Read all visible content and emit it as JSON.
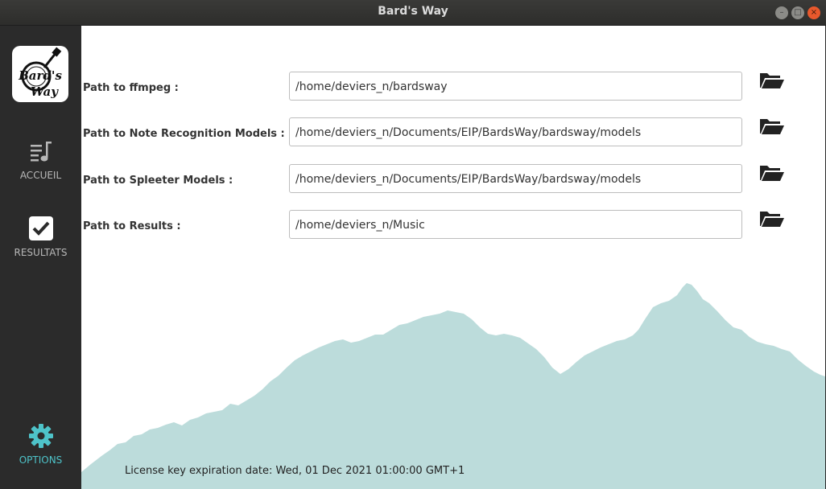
{
  "window": {
    "title": "Bard's Way"
  },
  "sidebar": {
    "logo_text_top": "Bard's",
    "logo_text_bottom": "Way",
    "items": [
      {
        "label": "ACCUEIL",
        "icon": "music-list-icon"
      },
      {
        "label": "RESULTATS",
        "icon": "checkbox-icon"
      },
      {
        "label": "OPTIONS",
        "icon": "gear-icon",
        "active": true
      }
    ],
    "active_color": "#4ec3c9"
  },
  "settings": {
    "ffmpeg": {
      "label": "Path to ffmpeg :",
      "value": "/home/deviers_n/bardsway"
    },
    "note_models": {
      "label": "Path to Note Recognition Models :",
      "value": "/home/deviers_n/Documents/EIP/BardsWay/bardsway/models"
    },
    "spleeter_models": {
      "label": "Path to Spleeter Models :",
      "value": "/home/deviers_n/Documents/EIP/BardsWay/bardsway/models"
    },
    "results": {
      "label": "Path to Results :",
      "value": "/home/deviers_n/Music"
    }
  },
  "footer": {
    "license": "License key expiration date: Wed, 01 Dec 2021 01:00:00 GMT+1"
  },
  "colors": {
    "mountain": "#bcdcdb",
    "accent": "#4ec3c9"
  }
}
